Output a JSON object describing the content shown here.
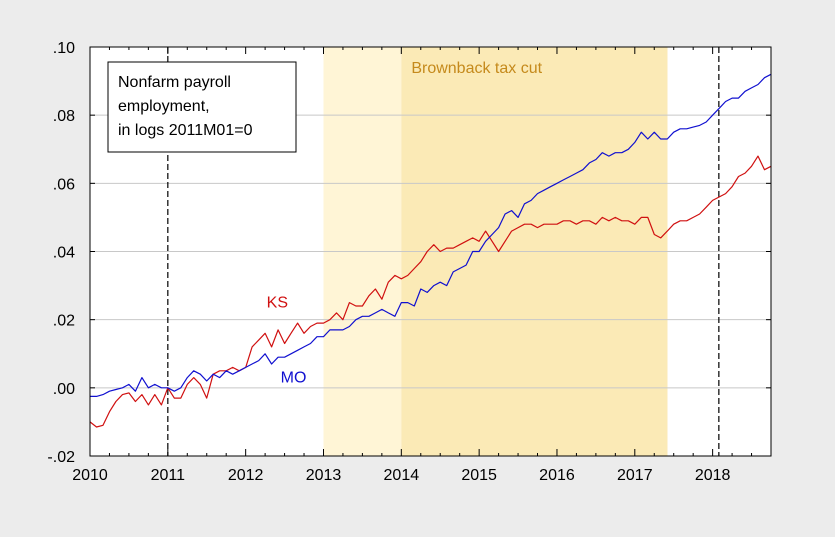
{
  "chart_data": {
    "type": "line",
    "title": "",
    "xlabel": "",
    "ylabel": "",
    "xlim": [
      2010.0,
      2018.75
    ],
    "ylim": [
      -0.02,
      0.1
    ],
    "y_ticks": [
      -0.02,
      0.0,
      0.02,
      0.04,
      0.06,
      0.08,
      0.1
    ],
    "y_tick_labels": [
      "-.02",
      ".00",
      ".02",
      ".04",
      ".06",
      ".08",
      ".10"
    ],
    "x_ticks": [
      2010,
      2011,
      2012,
      2013,
      2014,
      2015,
      2016,
      2017,
      2018
    ],
    "x_tick_labels": [
      "2010",
      "2011",
      "2012",
      "2013",
      "2014",
      "2015",
      "2016",
      "2017",
      "2018"
    ],
    "grid": true,
    "legend_box": {
      "placement": "top-left",
      "lines": [
        "Nonfarm payroll",
        "employment,",
        "in logs 2011M01=0"
      ]
    },
    "shaded_regions": [
      {
        "x0": 2013.0,
        "x1": 2014.0,
        "color": "#fff5d6",
        "label": ""
      },
      {
        "x0": 2014.0,
        "x1": 2017.42,
        "color": "#fbeab6",
        "label": "Brownback tax cut",
        "label_color": "#c58a1c"
      }
    ],
    "vertical_lines": [
      {
        "x": 2011.0,
        "style": "dashed"
      },
      {
        "x": 2018.08,
        "style": "dashed"
      }
    ],
    "series": [
      {
        "name": "KS",
        "color": "#d01010",
        "label_x": 2012.27,
        "label_y": 0.0235,
        "points": [
          [
            2010.0,
            -0.01
          ],
          [
            2010.083,
            -0.0115
          ],
          [
            2010.167,
            -0.011
          ],
          [
            2010.25,
            -0.007
          ],
          [
            2010.333,
            -0.004
          ],
          [
            2010.417,
            -0.002
          ],
          [
            2010.5,
            -0.0015
          ],
          [
            2010.583,
            -0.004
          ],
          [
            2010.667,
            -0.002
          ],
          [
            2010.75,
            -0.005
          ],
          [
            2010.833,
            -0.002
          ],
          [
            2010.917,
            -0.005
          ],
          [
            2011.0,
            0.0
          ],
          [
            2011.083,
            -0.003
          ],
          [
            2011.167,
            -0.003
          ],
          [
            2011.25,
            0.001
          ],
          [
            2011.333,
            0.003
          ],
          [
            2011.417,
            0.001
          ],
          [
            2011.5,
            -0.003
          ],
          [
            2011.583,
            0.004
          ],
          [
            2011.667,
            0.005
          ],
          [
            2011.75,
            0.005
          ],
          [
            2011.833,
            0.006
          ],
          [
            2011.917,
            0.005
          ],
          [
            2012.0,
            0.006
          ],
          [
            2012.083,
            0.012
          ],
          [
            2012.167,
            0.014
          ],
          [
            2012.25,
            0.016
          ],
          [
            2012.333,
            0.012
          ],
          [
            2012.417,
            0.017
          ],
          [
            2012.5,
            0.013
          ],
          [
            2012.583,
            0.016
          ],
          [
            2012.667,
            0.019
          ],
          [
            2012.75,
            0.016
          ],
          [
            2012.833,
            0.018
          ],
          [
            2012.917,
            0.019
          ],
          [
            2013.0,
            0.019
          ],
          [
            2013.083,
            0.02
          ],
          [
            2013.167,
            0.022
          ],
          [
            2013.25,
            0.02
          ],
          [
            2013.333,
            0.025
          ],
          [
            2013.417,
            0.024
          ],
          [
            2013.5,
            0.024
          ],
          [
            2013.583,
            0.027
          ],
          [
            2013.667,
            0.029
          ],
          [
            2013.75,
            0.026
          ],
          [
            2013.833,
            0.031
          ],
          [
            2013.917,
            0.033
          ],
          [
            2014.0,
            0.032
          ],
          [
            2014.083,
            0.033
          ],
          [
            2014.167,
            0.035
          ],
          [
            2014.25,
            0.037
          ],
          [
            2014.333,
            0.04
          ],
          [
            2014.417,
            0.042
          ],
          [
            2014.5,
            0.04
          ],
          [
            2014.583,
            0.041
          ],
          [
            2014.667,
            0.041
          ],
          [
            2014.75,
            0.042
          ],
          [
            2014.833,
            0.043
          ],
          [
            2014.917,
            0.044
          ],
          [
            2015.0,
            0.043
          ],
          [
            2015.083,
            0.046
          ],
          [
            2015.167,
            0.043
          ],
          [
            2015.25,
            0.04
          ],
          [
            2015.333,
            0.043
          ],
          [
            2015.417,
            0.046
          ],
          [
            2015.5,
            0.047
          ],
          [
            2015.583,
            0.048
          ],
          [
            2015.667,
            0.048
          ],
          [
            2015.75,
            0.047
          ],
          [
            2015.833,
            0.048
          ],
          [
            2015.917,
            0.048
          ],
          [
            2016.0,
            0.048
          ],
          [
            2016.083,
            0.049
          ],
          [
            2016.167,
            0.049
          ],
          [
            2016.25,
            0.048
          ],
          [
            2016.333,
            0.049
          ],
          [
            2016.417,
            0.049
          ],
          [
            2016.5,
            0.048
          ],
          [
            2016.583,
            0.05
          ],
          [
            2016.667,
            0.049
          ],
          [
            2016.75,
            0.05
          ],
          [
            2016.833,
            0.049
          ],
          [
            2016.917,
            0.049
          ],
          [
            2017.0,
            0.048
          ],
          [
            2017.083,
            0.05
          ],
          [
            2017.167,
            0.05
          ],
          [
            2017.25,
            0.045
          ],
          [
            2017.333,
            0.044
          ],
          [
            2017.417,
            0.046
          ],
          [
            2017.5,
            0.048
          ],
          [
            2017.583,
            0.049
          ],
          [
            2017.667,
            0.049
          ],
          [
            2017.75,
            0.05
          ],
          [
            2017.833,
            0.051
          ],
          [
            2017.917,
            0.053
          ],
          [
            2018.0,
            0.055
          ],
          [
            2018.083,
            0.056
          ],
          [
            2018.167,
            0.057
          ],
          [
            2018.25,
            0.059
          ],
          [
            2018.333,
            0.062
          ],
          [
            2018.417,
            0.063
          ],
          [
            2018.5,
            0.065
          ],
          [
            2018.583,
            0.068
          ],
          [
            2018.667,
            0.064
          ],
          [
            2018.75,
            0.065
          ]
        ]
      },
      {
        "name": "MO",
        "color": "#1010d0",
        "label_x": 2012.45,
        "label_y": 0.0015,
        "points": [
          [
            2010.0,
            -0.0025
          ],
          [
            2010.083,
            -0.0025
          ],
          [
            2010.167,
            -0.002
          ],
          [
            2010.25,
            -0.001
          ],
          [
            2010.333,
            -0.0005
          ],
          [
            2010.417,
            0.0
          ],
          [
            2010.5,
            0.001
          ],
          [
            2010.583,
            -0.001
          ],
          [
            2010.667,
            0.003
          ],
          [
            2010.75,
            0.0
          ],
          [
            2010.833,
            0.001
          ],
          [
            2010.917,
            0.0
          ],
          [
            2011.0,
            0.0
          ],
          [
            2011.083,
            -0.001
          ],
          [
            2011.167,
            0.0
          ],
          [
            2011.25,
            0.003
          ],
          [
            2011.333,
            0.005
          ],
          [
            2011.417,
            0.004
          ],
          [
            2011.5,
            0.002
          ],
          [
            2011.583,
            0.004
          ],
          [
            2011.667,
            0.003
          ],
          [
            2011.75,
            0.005
          ],
          [
            2011.833,
            0.004
          ],
          [
            2011.917,
            0.005
          ],
          [
            2012.0,
            0.006
          ],
          [
            2012.083,
            0.007
          ],
          [
            2012.167,
            0.008
          ],
          [
            2012.25,
            0.01
          ],
          [
            2012.333,
            0.007
          ],
          [
            2012.417,
            0.009
          ],
          [
            2012.5,
            0.009
          ],
          [
            2012.583,
            0.01
          ],
          [
            2012.667,
            0.011
          ],
          [
            2012.75,
            0.012
          ],
          [
            2012.833,
            0.013
          ],
          [
            2012.917,
            0.015
          ],
          [
            2013.0,
            0.015
          ],
          [
            2013.083,
            0.017
          ],
          [
            2013.167,
            0.017
          ],
          [
            2013.25,
            0.017
          ],
          [
            2013.333,
            0.018
          ],
          [
            2013.417,
            0.02
          ],
          [
            2013.5,
            0.021
          ],
          [
            2013.583,
            0.021
          ],
          [
            2013.667,
            0.022
          ],
          [
            2013.75,
            0.023
          ],
          [
            2013.833,
            0.022
          ],
          [
            2013.917,
            0.021
          ],
          [
            2014.0,
            0.025
          ],
          [
            2014.083,
            0.025
          ],
          [
            2014.167,
            0.024
          ],
          [
            2014.25,
            0.029
          ],
          [
            2014.333,
            0.028
          ],
          [
            2014.417,
            0.03
          ],
          [
            2014.5,
            0.031
          ],
          [
            2014.583,
            0.03
          ],
          [
            2014.667,
            0.034
          ],
          [
            2014.75,
            0.035
          ],
          [
            2014.833,
            0.036
          ],
          [
            2014.917,
            0.04
          ],
          [
            2015.0,
            0.04
          ],
          [
            2015.083,
            0.043
          ],
          [
            2015.167,
            0.045
          ],
          [
            2015.25,
            0.047
          ],
          [
            2015.333,
            0.051
          ],
          [
            2015.417,
            0.052
          ],
          [
            2015.5,
            0.05
          ],
          [
            2015.583,
            0.054
          ],
          [
            2015.667,
            0.055
          ],
          [
            2015.75,
            0.057
          ],
          [
            2015.833,
            0.058
          ],
          [
            2015.917,
            0.059
          ],
          [
            2016.0,
            0.06
          ],
          [
            2016.083,
            0.061
          ],
          [
            2016.167,
            0.062
          ],
          [
            2016.25,
            0.063
          ],
          [
            2016.333,
            0.064
          ],
          [
            2016.417,
            0.066
          ],
          [
            2016.5,
            0.067
          ],
          [
            2016.583,
            0.069
          ],
          [
            2016.667,
            0.068
          ],
          [
            2016.75,
            0.069
          ],
          [
            2016.833,
            0.069
          ],
          [
            2016.917,
            0.07
          ],
          [
            2017.0,
            0.072
          ],
          [
            2017.083,
            0.075
          ],
          [
            2017.167,
            0.073
          ],
          [
            2017.25,
            0.075
          ],
          [
            2017.333,
            0.073
          ],
          [
            2017.417,
            0.073
          ],
          [
            2017.5,
            0.075
          ],
          [
            2017.583,
            0.076
          ],
          [
            2017.667,
            0.076
          ],
          [
            2017.75,
            0.0765
          ],
          [
            2017.833,
            0.077
          ],
          [
            2017.917,
            0.078
          ],
          [
            2018.0,
            0.08
          ],
          [
            2018.083,
            0.082
          ],
          [
            2018.167,
            0.084
          ],
          [
            2018.25,
            0.085
          ],
          [
            2018.333,
            0.085
          ],
          [
            2018.417,
            0.087
          ],
          [
            2018.5,
            0.088
          ],
          [
            2018.583,
            0.089
          ],
          [
            2018.667,
            0.091
          ],
          [
            2018.75,
            0.092
          ]
        ]
      }
    ]
  }
}
